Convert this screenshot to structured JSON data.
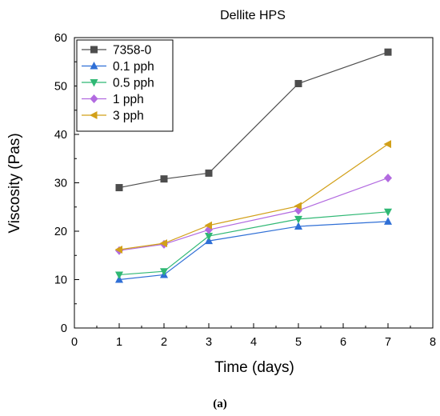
{
  "chart_data": {
    "type": "line",
    "title": "Dellite HPS",
    "xlabel": "Time (days)",
    "ylabel": "Viscosity (Pas)",
    "xlim": [
      0,
      8
    ],
    "ylim": [
      0,
      60
    ],
    "xticks": [
      0,
      1,
      2,
      3,
      4,
      5,
      6,
      7,
      8
    ],
    "yticks": [
      0,
      10,
      20,
      30,
      40,
      50,
      60
    ],
    "grid": false,
    "legend_position": "top-left",
    "x": [
      1,
      2,
      3,
      5,
      7
    ],
    "series": [
      {
        "name": "7358-0",
        "marker": "square",
        "color": "#4d4d4d",
        "values": [
          29,
          30.8,
          32,
          50.5,
          57
        ]
      },
      {
        "name": "0.1 pph",
        "marker": "triangle-up",
        "color": "#2f6fd6",
        "values": [
          10,
          11,
          18,
          21,
          22
        ]
      },
      {
        "name": "0.5 pph",
        "marker": "triangle-down",
        "color": "#2fb874",
        "values": [
          11,
          11.7,
          19,
          22.5,
          24
        ]
      },
      {
        "name": "1 pph",
        "marker": "diamond",
        "color": "#b26ae0",
        "values": [
          16,
          17.3,
          20.3,
          24.3,
          31
        ]
      },
      {
        "name": "3 pph",
        "marker": "triangle-left",
        "color": "#d2a019",
        "values": [
          16.2,
          17.5,
          21.2,
          25.2,
          38
        ]
      }
    ]
  },
  "caption": "(a)"
}
